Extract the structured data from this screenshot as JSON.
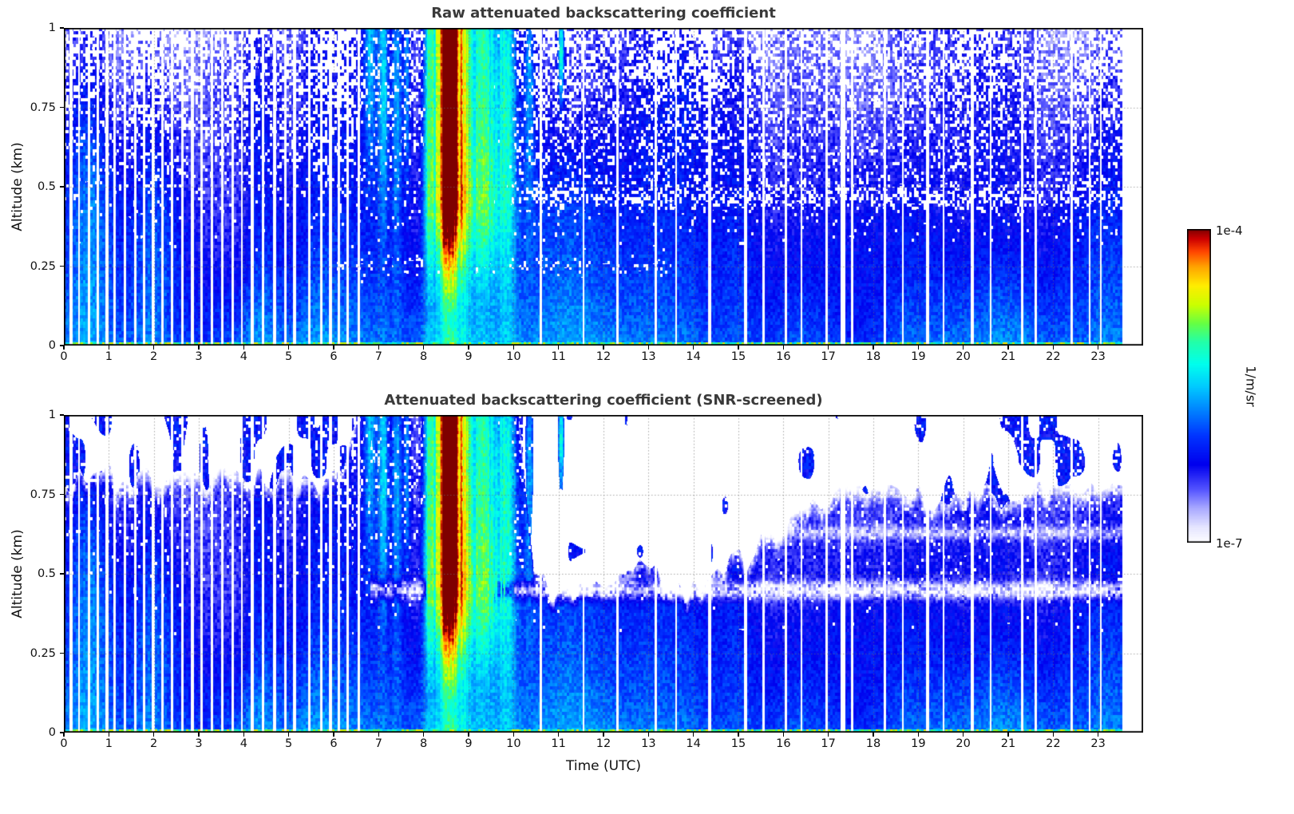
{
  "figure": {
    "background": "#ffffff"
  },
  "panels": [
    {
      "title": "Raw attenuated backscattering coefficient",
      "description": "Raw field: mostly blue background near 1e-6 1/m/sr, dense white speckle dropouts above ~0.4 km, strong plume 6.8-10.2 UTC peaking near 1e-4 around 8.3-9.0 UTC, many narrow white data-gap columns especially 0-6.5 UTC, thin green surface-return line at 0 km"
    },
    {
      "title": "Attenuated backscattering coefficient (SNR-screened)",
      "description": "Same field with low-SNR pixels removed: white above ~0.8 km before 6 UTC with scattered retained cloud patches, plume region fully retained 6.6-10 UTC, white above ~0.45 km 10.5-16 UTC, white above ~0.75 km after 16 UTC, light whitish band near 0.45 km after 7 UTC"
    }
  ],
  "axes": {
    "x": {
      "label": "Time (UTC)",
      "min": 0,
      "max": 24,
      "data_end": 23.53,
      "ticks": [
        {
          "v": 0,
          "label": "0"
        },
        {
          "v": 1,
          "label": "1"
        },
        {
          "v": 2,
          "label": "2"
        },
        {
          "v": 3,
          "label": "3"
        },
        {
          "v": 4,
          "label": "4"
        },
        {
          "v": 5,
          "label": "5"
        },
        {
          "v": 6,
          "label": "6"
        },
        {
          "v": 7,
          "label": "7"
        },
        {
          "v": 8,
          "label": "8"
        },
        {
          "v": 9,
          "label": "9"
        },
        {
          "v": 10,
          "label": "10"
        },
        {
          "v": 11,
          "label": "11"
        },
        {
          "v": 12,
          "label": "12"
        },
        {
          "v": 13,
          "label": "13"
        },
        {
          "v": 14,
          "label": "14"
        },
        {
          "v": 15,
          "label": "15"
        },
        {
          "v": 16,
          "label": "16"
        },
        {
          "v": 17,
          "label": "17"
        },
        {
          "v": 18,
          "label": "18"
        },
        {
          "v": 19,
          "label": "19"
        },
        {
          "v": 20,
          "label": "20"
        },
        {
          "v": 21,
          "label": "21"
        },
        {
          "v": 22,
          "label": "22"
        },
        {
          "v": 23,
          "label": "23"
        }
      ]
    },
    "y": {
      "label": "Altitude (km)",
      "min": 0,
      "max": 1,
      "ticks": [
        {
          "v": 0,
          "label": "0"
        },
        {
          "v": 0.25,
          "label": "0.25"
        },
        {
          "v": 0.5,
          "label": "0.5"
        },
        {
          "v": 0.75,
          "label": "0.75"
        },
        {
          "v": 1,
          "label": "1"
        }
      ]
    }
  },
  "colorbar": {
    "top_label": "1e-4",
    "bottom_label": "1e-7",
    "unit": "1/m/sr",
    "scale": "log",
    "min": 1e-07,
    "max": 0.0001,
    "stops": [
      {
        "t": 0.0,
        "color": "#ffffff"
      },
      {
        "t": 0.05,
        "color": "#e6e6ff"
      },
      {
        "t": 0.11,
        "color": "#aaaaff"
      },
      {
        "t": 0.17,
        "color": "#5555ff"
      },
      {
        "t": 0.25,
        "color": "#0000ee"
      },
      {
        "t": 0.34,
        "color": "#0033ff"
      },
      {
        "t": 0.42,
        "color": "#0080ff"
      },
      {
        "t": 0.5,
        "color": "#00ccff"
      },
      {
        "t": 0.57,
        "color": "#00ffee"
      },
      {
        "t": 0.64,
        "color": "#22ffaa"
      },
      {
        "t": 0.7,
        "color": "#66ff44"
      },
      {
        "t": 0.76,
        "color": "#ccff00"
      },
      {
        "t": 0.82,
        "color": "#ffee00"
      },
      {
        "t": 0.88,
        "color": "#ffa500"
      },
      {
        "t": 0.93,
        "color": "#ff4400"
      },
      {
        "t": 0.97,
        "color": "#cc0000"
      },
      {
        "t": 1.0,
        "color": "#7f0000"
      }
    ]
  },
  "chart_data": {
    "type": "heatmap",
    "x": {
      "name": "Time (UTC)",
      "units": "hours",
      "min": 0,
      "max": 24,
      "data_end": 23.53
    },
    "y": {
      "name": "Altitude (km)",
      "units": "km",
      "min": 0,
      "max": 1
    },
    "value": {
      "name": "attenuated backscattering coefficient",
      "units": "1/m/sr",
      "scale": "log",
      "min": 1e-07,
      "max": 0.0001,
      "typical_background": 1e-06
    },
    "features": [
      {
        "t": 8.55,
        "st": 0.2,
        "amp": 0.92,
        "att": true
      },
      {
        "t": 8.55,
        "st": 0.16,
        "amp": 0.22,
        "z": 1.0,
        "sz": 0.45
      },
      {
        "t": 8.12,
        "st": 0.1,
        "amp": 0.36,
        "att": true
      },
      {
        "t": 8.9,
        "st": 0.1,
        "amp": 0.3,
        "att": true
      },
      {
        "t": 9.3,
        "st": 0.26,
        "amp": 0.48,
        "att": true
      },
      {
        "t": 9.85,
        "st": 0.15,
        "amp": 0.34,
        "z": 0.9,
        "sz": 0.55
      },
      {
        "t": 6.8,
        "st": 0.1,
        "amp": 0.28,
        "z": 1.0,
        "sz": 0.3
      },
      {
        "t": 7.1,
        "st": 0.09,
        "amp": 0.3,
        "z": 0.85,
        "sz": 0.35
      },
      {
        "t": 7.4,
        "st": 0.08,
        "amp": 0.28,
        "z": 0.8,
        "sz": 0.4
      },
      {
        "t": 7.62,
        "st": 0.06,
        "amp": 0.24,
        "z": 0.9,
        "sz": 0.3
      },
      {
        "t": 10.35,
        "st": 0.08,
        "amp": 0.26,
        "z": 0.9,
        "sz": 0.3
      },
      {
        "t": 11.05,
        "st": 0.05,
        "amp": 0.4,
        "z": 0.93,
        "sz": 0.12
      },
      {
        "t": 0.45,
        "st": 0.45,
        "amp": 0.15,
        "z": 0.45,
        "sz": 0.35
      },
      {
        "t": 2.2,
        "st": 0.35,
        "amp": 0.08,
        "z": 0.3,
        "sz": 0.3
      }
    ],
    "gaps": [
      [
        0.15,
        0.06
      ],
      [
        0.33,
        0.05
      ],
      [
        0.55,
        0.07
      ],
      [
        0.74,
        0.05
      ],
      [
        0.95,
        0.06
      ],
      [
        1.12,
        0.05
      ],
      [
        1.35,
        0.06
      ],
      [
        1.58,
        0.05
      ],
      [
        1.78,
        0.05
      ],
      [
        1.98,
        0.06
      ],
      [
        2.18,
        0.05
      ],
      [
        2.4,
        0.06
      ],
      [
        2.62,
        0.05
      ],
      [
        2.85,
        0.06
      ],
      [
        3.05,
        0.05
      ],
      [
        3.28,
        0.06
      ],
      [
        3.52,
        0.05
      ],
      [
        3.75,
        0.06
      ],
      [
        3.95,
        0.05
      ],
      [
        4.18,
        0.06
      ],
      [
        4.42,
        0.05
      ],
      [
        4.68,
        0.06
      ],
      [
        4.92,
        0.05
      ],
      [
        5.12,
        0.06
      ],
      [
        5.45,
        0.07
      ],
      [
        5.72,
        0.05
      ],
      [
        5.92,
        0.08
      ],
      [
        6.1,
        0.05
      ],
      [
        6.3,
        0.05
      ],
      [
        6.55,
        0.04
      ],
      [
        10.6,
        0.06
      ],
      [
        11.55,
        0.04
      ],
      [
        12.3,
        0.05
      ],
      [
        13.15,
        0.06
      ],
      [
        13.6,
        0.04
      ],
      [
        14.35,
        0.07
      ],
      [
        15.15,
        0.06
      ],
      [
        15.55,
        0.04
      ],
      [
        16.05,
        0.05
      ],
      [
        16.4,
        0.04
      ],
      [
        16.95,
        0.05
      ],
      [
        17.32,
        0.1
      ],
      [
        17.52,
        0.06
      ],
      [
        18.25,
        0.06
      ],
      [
        18.65,
        0.04
      ],
      [
        19.2,
        0.06
      ],
      [
        19.55,
        0.04
      ],
      [
        20.2,
        0.07
      ],
      [
        20.6,
        0.04
      ],
      [
        21.3,
        0.06
      ],
      [
        21.6,
        0.05
      ],
      [
        22.4,
        0.06
      ],
      [
        22.8,
        0.04
      ],
      [
        23.05,
        0.05
      ]
    ],
    "snr_max_altitude": [
      [
        0,
        0.8
      ],
      [
        6.2,
        0.8
      ],
      [
        6.6,
        1.05
      ],
      [
        10.05,
        1.05
      ],
      [
        10.45,
        0.5
      ],
      [
        10.9,
        0.42
      ],
      [
        11.6,
        0.45
      ],
      [
        12.2,
        0.43
      ],
      [
        12.8,
        0.55
      ],
      [
        13.3,
        0.46
      ],
      [
        14.0,
        0.44
      ],
      [
        14.6,
        0.52
      ],
      [
        15.3,
        0.56
      ],
      [
        15.9,
        0.66
      ],
      [
        16.5,
        0.72
      ],
      [
        17.3,
        0.75
      ],
      [
        18.2,
        0.76
      ],
      [
        19.3,
        0.72
      ],
      [
        20.3,
        0.77
      ],
      [
        21.3,
        0.73
      ],
      [
        22.3,
        0.77
      ],
      [
        23.5,
        0.78
      ]
    ],
    "render": {
      "seed": 1337
    }
  }
}
